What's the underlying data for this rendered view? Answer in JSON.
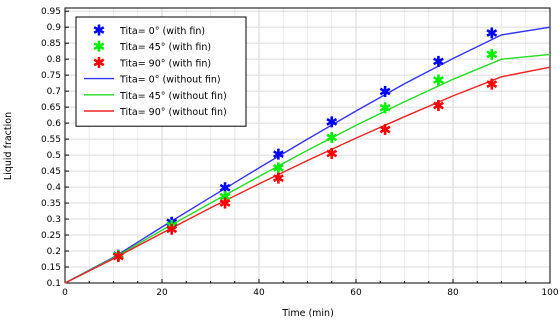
{
  "chart_data": {
    "type": "line",
    "title": "",
    "xlabel": "Time (min)",
    "ylabel": "Liquid fraction",
    "xlim": [
      0,
      100
    ],
    "ylim": [
      0.1,
      0.96
    ],
    "x_ticks": [
      0,
      20,
      40,
      60,
      80,
      100
    ],
    "y_ticks": [
      0.1,
      0.15,
      0.2,
      0.25,
      0.3,
      0.35,
      0.4,
      0.45,
      0.5,
      0.55,
      0.6,
      0.65,
      0.7,
      0.75,
      0.8,
      0.85,
      0.9,
      0.95
    ],
    "grid": true,
    "legend_position": "top-left",
    "series": [
      {
        "name": "Tita= 0° (with fin)",
        "kind": "marker",
        "color": "#0000ff",
        "x": [
          11,
          22,
          33,
          44,
          55,
          66,
          77,
          88
        ],
        "y": [
          0.187,
          0.29,
          0.398,
          0.503,
          0.604,
          0.699,
          0.793,
          0.882
        ]
      },
      {
        "name": "Tita= 45° (with fin)",
        "kind": "marker",
        "color": "#00ee00",
        "x": [
          11,
          22,
          33,
          44,
          55,
          66,
          77,
          88
        ],
        "y": [
          0.186,
          0.28,
          0.37,
          0.46,
          0.555,
          0.648,
          0.735,
          0.815
        ]
      },
      {
        "name": "Tita= 90° (with fin)",
        "kind": "marker",
        "color": "#ff0000",
        "x": [
          11,
          22,
          33,
          44,
          55,
          66,
          77,
          88
        ],
        "y": [
          0.183,
          0.268,
          0.35,
          0.428,
          0.505,
          0.58,
          0.655,
          0.722
        ]
      },
      {
        "name": "Tita= 0° (without fin)",
        "kind": "line",
        "color": "#3333ff",
        "x": [
          0,
          10,
          20,
          30,
          40,
          50,
          60,
          70,
          80,
          90,
          100
        ],
        "y": [
          0.1,
          0.18,
          0.275,
          0.368,
          0.46,
          0.55,
          0.638,
          0.723,
          0.802,
          0.876,
          0.9
        ]
      },
      {
        "name": "Tita= 45° (without fin)",
        "kind": "line",
        "color": "#22dd22",
        "x": [
          0,
          10,
          20,
          30,
          40,
          50,
          60,
          70,
          80,
          90,
          100
        ],
        "y": [
          0.1,
          0.178,
          0.265,
          0.35,
          0.433,
          0.515,
          0.593,
          0.667,
          0.737,
          0.8,
          0.815
        ]
      },
      {
        "name": "Tita= 90° (without fin)",
        "kind": "line",
        "color": "#ee2222",
        "x": [
          0,
          10,
          20,
          30,
          40,
          50,
          60,
          70,
          80,
          90,
          100
        ],
        "y": [
          0.1,
          0.176,
          0.256,
          0.335,
          0.41,
          0.483,
          0.553,
          0.62,
          0.685,
          0.745,
          0.775
        ]
      }
    ]
  }
}
